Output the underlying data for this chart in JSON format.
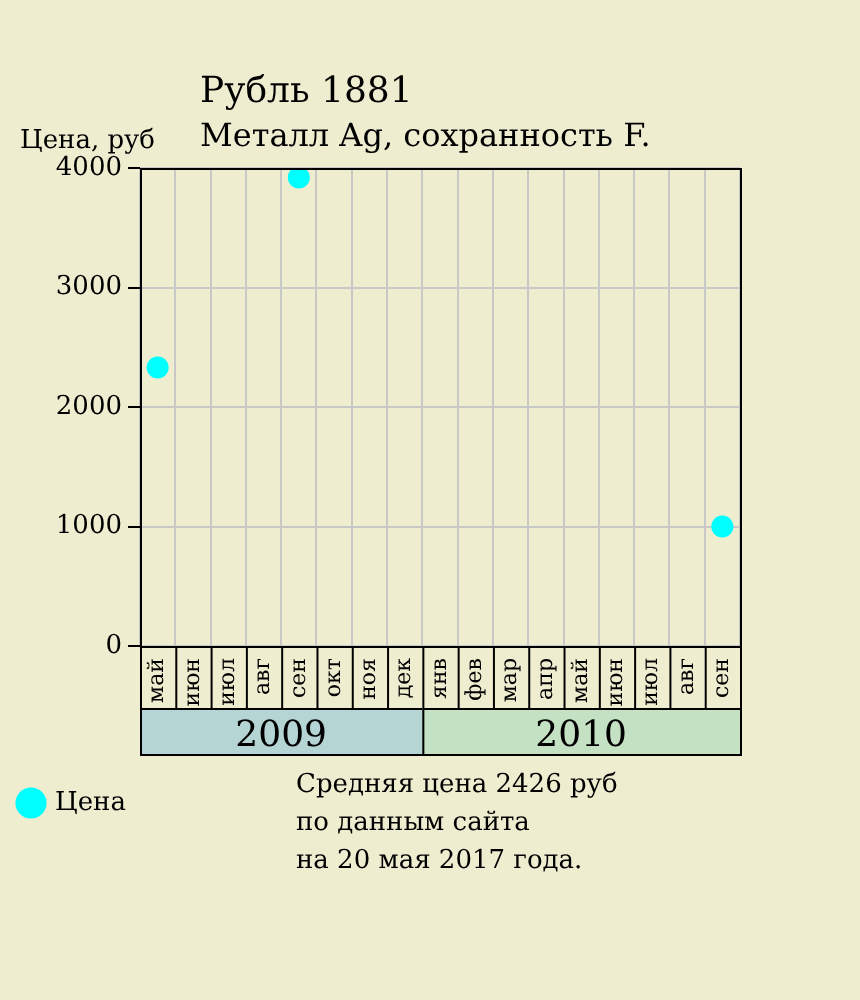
{
  "chart_data": {
    "type": "scatter",
    "title": "Рубль 1881",
    "subtitle": "Металл Ag, сохранность F.",
    "ylabel": "Цена, руб",
    "categories": [
      "май",
      "июн",
      "июл",
      "авг",
      "сен",
      "окт",
      "ноя",
      "дек",
      "янв",
      "фев",
      "мар",
      "апр",
      "май",
      "июн",
      "июл",
      "авг",
      "сен"
    ],
    "series": [
      {
        "name": "Цена",
        "color": "#00ffff",
        "values": [
          2330,
          null,
          null,
          null,
          3920,
          null,
          null,
          null,
          null,
          null,
          null,
          null,
          null,
          null,
          null,
          null,
          1000
        ]
      }
    ],
    "ylim": [
      0,
      4000
    ],
    "yticks": [
      0,
      1000,
      2000,
      3000,
      4000
    ],
    "grid": true,
    "legend": "bottom left",
    "marker": "circle",
    "annotations": [
      "2009",
      "2010",
      "Средняя цена 2426 руб",
      "по данным сайта",
      "на 20 мая 2017 года."
    ]
  }
}
